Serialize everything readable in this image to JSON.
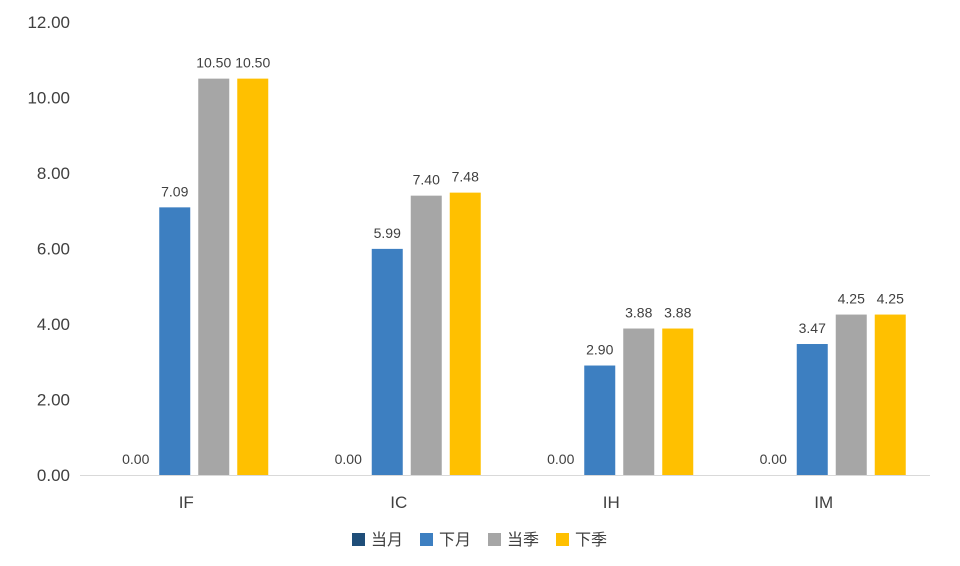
{
  "chart_data": {
    "type": "bar",
    "title": "",
    "xlabel": "",
    "ylabel": "",
    "ylim": [
      0,
      12
    ],
    "ytick_step": 2,
    "ytick_labels": [
      "0.00",
      "2.00",
      "4.00",
      "6.00",
      "8.00",
      "10.00",
      "12.00"
    ],
    "grid": false,
    "legend_position": "bottom",
    "categories": [
      "IF",
      "IC",
      "IH",
      "IM"
    ],
    "series": [
      {
        "name": "当月",
        "color": "#1f4e79",
        "values": [
          0.0,
          0.0,
          0.0,
          0.0
        ],
        "labels": [
          "0.00",
          "0.00",
          "0.00",
          "0.00"
        ]
      },
      {
        "name": "下月",
        "color": "#3d7fc1",
        "values": [
          7.09,
          5.99,
          2.9,
          3.47
        ],
        "labels": [
          "7.09",
          "5.99",
          "2.90",
          "3.47"
        ]
      },
      {
        "name": "当季",
        "color": "#a6a6a6",
        "values": [
          10.5,
          7.4,
          3.88,
          4.25
        ],
        "labels": [
          "10.50",
          "7.40",
          "3.88",
          "4.25"
        ]
      },
      {
        "name": "下季",
        "color": "#ffc000",
        "values": [
          10.5,
          7.48,
          3.88,
          4.25
        ],
        "labels": [
          "10.50",
          "7.48",
          "3.88",
          "4.25"
        ]
      }
    ]
  }
}
